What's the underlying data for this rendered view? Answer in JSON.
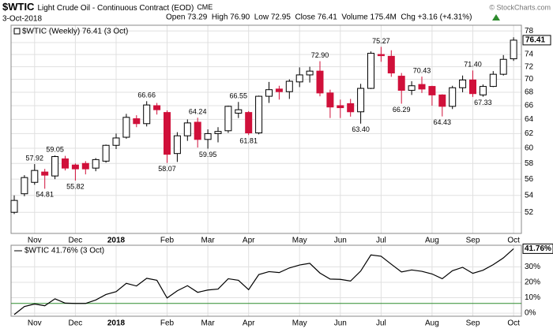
{
  "header": {
    "symbol": "$WTIC",
    "name": "Light Crude Oil - Continuous Contract (EOD)",
    "exchange": "CME",
    "date": "3-Oct-2018",
    "quote": "Open 73.29  High 76.90  Low 72.95  Close 76.41  Volume 175.4M  Chg +3.16 (+4.31%)",
    "copyright": "© StockCharts.com"
  },
  "chart_data": [
    {
      "type": "candlestick",
      "legend": "$WTIC (Weekly) 76.41 (3 Oct)",
      "last_label": "76.41",
      "categories": [
        null,
        null,
        "Nov",
        null,
        null,
        null,
        "Dec",
        null,
        null,
        null,
        "2018",
        null,
        null,
        null,
        null,
        "Feb",
        null,
        null,
        null,
        "Mar",
        null,
        null,
        null,
        "Apr",
        null,
        null,
        null,
        null,
        "May",
        null,
        null,
        null,
        "Jun",
        null,
        null,
        null,
        "Jul",
        null,
        null,
        null,
        null,
        "Aug",
        null,
        null,
        null,
        "Sep",
        null,
        null,
        null,
        "Oct"
      ],
      "open": [
        52.0,
        54.2,
        55.6,
        56.9,
        56.4,
        58.6,
        57.8,
        58.0,
        57.4,
        58.3,
        60.4,
        61.5,
        64.1,
        63.4,
        66.0,
        65.0,
        59.3,
        61.7,
        63.6,
        61.2,
        62.0,
        62.4,
        64.9,
        65.0,
        62.1,
        67.4,
        68.5,
        68.1,
        69.6,
        70.7,
        71.3,
        67.9,
        66.0,
        66.3,
        65.1,
        68.6,
        74.0,
        73.7,
        70.5,
        68.3,
        69.2,
        68.9,
        67.6,
        65.9,
        68.7,
        69.9,
        67.6,
        68.9,
        70.8,
        73.29
      ],
      "high": [
        54.0,
        56.5,
        57.92,
        57.3,
        59.05,
        59.0,
        58.0,
        58.3,
        58.7,
        60.5,
        62.0,
        64.8,
        64.6,
        66.66,
        66.4,
        65.3,
        62.2,
        64.0,
        64.24,
        62.6,
        62.9,
        66.0,
        66.55,
        65.2,
        67.5,
        69.6,
        69.0,
        70.0,
        71.9,
        72.0,
        72.9,
        68.4,
        66.9,
        67.0,
        69.3,
        74.5,
        75.27,
        74.7,
        71.0,
        69.7,
        70.43,
        69.0,
        67.7,
        69.0,
        70.6,
        71.4,
        69.2,
        71.3,
        73.9,
        76.9
      ],
      "low": [
        51.8,
        53.9,
        55.3,
        54.81,
        56.0,
        57.1,
        55.82,
        56.6,
        57.0,
        58.1,
        59.9,
        61.3,
        62.9,
        63.0,
        64.7,
        58.07,
        58.2,
        61.0,
        60.1,
        59.95,
        60.8,
        62.1,
        64.2,
        61.81,
        61.9,
        66.4,
        66.9,
        67.0,
        68.8,
        69.5,
        67.4,
        64.2,
        64.2,
        64.4,
        63.4,
        68.5,
        72.8,
        70.4,
        66.29,
        67.6,
        67.9,
        66.0,
        64.43,
        65.5,
        68.0,
        67.3,
        67.33,
        68.8,
        70.6,
        72.95
      ],
      "close": [
        53.4,
        56.2,
        57.1,
        56.5,
        58.9,
        57.4,
        57.3,
        57.3,
        58.5,
        60.4,
        61.4,
        64.3,
        63.4,
        66.1,
        65.4,
        59.2,
        61.7,
        63.5,
        61.2,
        62.0,
        62.3,
        65.9,
        65.4,
        62.1,
        67.4,
        68.4,
        68.1,
        69.7,
        70.7,
        71.3,
        67.9,
        65.8,
        65.7,
        65.1,
        68.6,
        74.2,
        73.8,
        71.0,
        68.3,
        69.0,
        68.5,
        67.6,
        65.9,
        68.7,
        69.9,
        67.8,
        68.9,
        70.8,
        73.2,
        76.41
      ],
      "high_labels": [
        null,
        null,
        "57.92",
        null,
        "59.05",
        null,
        null,
        null,
        null,
        null,
        null,
        null,
        null,
        "66.66",
        null,
        null,
        null,
        null,
        "64.24",
        null,
        null,
        null,
        "66.55",
        null,
        null,
        null,
        null,
        null,
        null,
        null,
        "72.90",
        null,
        null,
        null,
        null,
        null,
        "75.27",
        null,
        null,
        null,
        "70.43",
        null,
        null,
        null,
        null,
        "71.40",
        null,
        null,
        null,
        null
      ],
      "low_labels": [
        null,
        null,
        null,
        "54.81",
        null,
        null,
        "55.82",
        null,
        null,
        null,
        null,
        null,
        null,
        null,
        null,
        "58.07",
        null,
        null,
        null,
        "59.95",
        null,
        null,
        null,
        "61.81",
        null,
        null,
        null,
        null,
        null,
        null,
        null,
        null,
        null,
        null,
        "63.40",
        null,
        null,
        null,
        "66.29",
        null,
        null,
        null,
        "64.43",
        null,
        null,
        null,
        "67.33",
        null,
        null,
        null
      ],
      "ylim": [
        49.6,
        79
      ],
      "log": true,
      "yticks": [
        52,
        54,
        56,
        58,
        60,
        62,
        64,
        66,
        68,
        70,
        72,
        74,
        76,
        78
      ],
      "grid": true,
      "up_color": "#ffffff",
      "down_color": "#d0103a"
    },
    {
      "type": "line",
      "legend": "$WTIC 41.76% (3 Oct)",
      "last_label": "41.76%",
      "categories": [
        null,
        null,
        "Nov",
        null,
        null,
        null,
        "Dec",
        null,
        null,
        null,
        "2018",
        null,
        null,
        null,
        null,
        "Feb",
        null,
        null,
        null,
        "Mar",
        null,
        null,
        null,
        "Apr",
        null,
        null,
        null,
        null,
        "May",
        null,
        null,
        null,
        "Jun",
        null,
        null,
        null,
        "Jul",
        null,
        null,
        null,
        null,
        "Aug",
        null,
        null,
        null,
        "Sep",
        null,
        null,
        null,
        "Oct"
      ],
      "values": [
        -0.9,
        4.3,
        5.9,
        4.8,
        9.3,
        6.5,
        6.3,
        6.3,
        8.5,
        12.1,
        13.9,
        19.3,
        17.6,
        22.6,
        21.3,
        9.8,
        14.5,
        17.8,
        13.5,
        15.0,
        15.6,
        22.3,
        21.3,
        15.2,
        25.0,
        26.9,
        26.3,
        29.3,
        31.2,
        32.3,
        26.0,
        22.1,
        21.9,
        20.8,
        27.3,
        37.7,
        36.9,
        31.7,
        26.7,
        28.0,
        27.1,
        25.4,
        22.3,
        27.5,
        29.7,
        25.8,
        27.8,
        31.4,
        35.8,
        41.76
      ],
      "color": "#000000",
      "ylim": [
        -2,
        44
      ],
      "yticks": [
        {
          "value": 0,
          "label": "0%"
        },
        {
          "value": 10,
          "label": "10%"
        },
        {
          "value": 20,
          "label": "20%"
        },
        {
          "value": 30,
          "label": "30%"
        }
      ],
      "grid": true,
      "reference_line": {
        "value": 6.3,
        "color": "#2e8b2e"
      }
    }
  ]
}
